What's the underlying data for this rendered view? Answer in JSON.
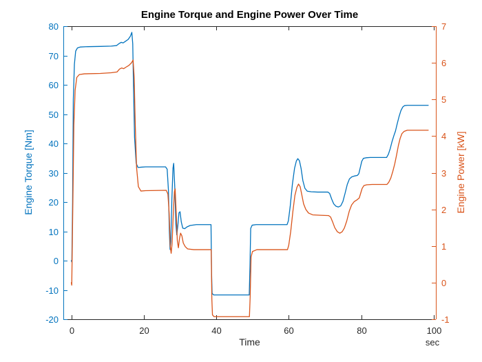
{
  "title": "Engine Torque and Engine Power Over Time",
  "colors": {
    "torque": "#0072BD",
    "power": "#D95319",
    "axis": "#262626",
    "title": "#000000",
    "background": "#ffffff"
  },
  "axes": {
    "x": {
      "label": "Time",
      "unit": "sec",
      "ticks": [
        0,
        20,
        40,
        60,
        80,
        100
      ],
      "range": [
        -2.2,
        100.6
      ]
    },
    "left": {
      "label": "Engine Torque [Nm]",
      "ticks": [
        -20,
        -10,
        0,
        10,
        20,
        30,
        40,
        50,
        60,
        70,
        80
      ],
      "range": [
        -20,
        80
      ]
    },
    "right": {
      "label": "Engine Power [kW]",
      "ticks": [
        -1,
        0,
        1,
        2,
        3,
        4,
        5,
        6,
        7
      ],
      "range": [
        -1,
        7
      ]
    }
  },
  "chart_data": {
    "type": "line",
    "title": "Engine Torque and Engine Power Over Time",
    "xlabel": "Time",
    "x_unit": "sec",
    "xlim": [
      -2.2,
      100.6
    ],
    "grid": false,
    "legend": "none",
    "series": [
      {
        "name": "Engine Torque",
        "axis": "left",
        "ylabel": "Engine Torque [Nm]",
        "ylim": [
          -20,
          80
        ],
        "color": "#0072BD",
        "points": [
          [
            0,
            0
          ],
          [
            0.15,
            -0.5
          ],
          [
            0.35,
            20
          ],
          [
            0.55,
            55
          ],
          [
            0.85,
            67
          ],
          [
            1.2,
            71.5
          ],
          [
            1.7,
            72.6
          ],
          [
            2.5,
            72.9
          ],
          [
            4,
            73
          ],
          [
            8,
            73.1
          ],
          [
            11,
            73.2
          ],
          [
            12.5,
            73.4
          ],
          [
            13.2,
            74.1
          ],
          [
            13.8,
            74.5
          ],
          [
            14.3,
            74.3
          ],
          [
            14.9,
            74.8
          ],
          [
            15.7,
            75.5
          ],
          [
            16.3,
            76.6
          ],
          [
            16.7,
            77.9
          ],
          [
            16.95,
            74
          ],
          [
            17.15,
            60
          ],
          [
            17.45,
            42
          ],
          [
            17.9,
            33.2
          ],
          [
            18.4,
            31.8
          ],
          [
            19.3,
            31.9
          ],
          [
            20.5,
            32
          ],
          [
            26.0,
            32
          ],
          [
            26.45,
            31.2
          ],
          [
            26.8,
            24
          ],
          [
            27.05,
            10
          ],
          [
            27.25,
            3.8
          ],
          [
            27.45,
            6.5
          ],
          [
            27.75,
            21
          ],
          [
            28.05,
            31.5
          ],
          [
            28.25,
            33.2
          ],
          [
            28.55,
            25
          ],
          [
            28.85,
            12.5
          ],
          [
            29.1,
            8.8
          ],
          [
            29.4,
            12
          ],
          [
            29.7,
            16.3
          ],
          [
            30.0,
            16.7
          ],
          [
            30.35,
            13.2
          ],
          [
            30.75,
            11.1
          ],
          [
            31.3,
            10.9
          ],
          [
            31.9,
            11.5
          ],
          [
            32.8,
            12.0
          ],
          [
            34.5,
            12.3
          ],
          [
            38.55,
            12.3
          ],
          [
            38.7,
            -4
          ],
          [
            38.85,
            -11.2
          ],
          [
            39.3,
            -11.7
          ],
          [
            49.1,
            -11.7
          ],
          [
            49.3,
            -2
          ],
          [
            49.5,
            11
          ],
          [
            49.9,
            12.1
          ],
          [
            51,
            12.3
          ],
          [
            59.55,
            12.3
          ],
          [
            59.9,
            13.6
          ],
          [
            60.4,
            18.5
          ],
          [
            61.0,
            26
          ],
          [
            61.6,
            31.5
          ],
          [
            62.1,
            34
          ],
          [
            62.5,
            34.8
          ],
          [
            62.95,
            34.1
          ],
          [
            63.4,
            31.5
          ],
          [
            63.9,
            27.3
          ],
          [
            64.45,
            24.7
          ],
          [
            65.1,
            23.7
          ],
          [
            66.2,
            23.5
          ],
          [
            68,
            23.4
          ],
          [
            70.8,
            23.4
          ],
          [
            71.3,
            22.9
          ],
          [
            71.85,
            21
          ],
          [
            72.4,
            19.4
          ],
          [
            73.0,
            18.6
          ],
          [
            73.7,
            18.3
          ],
          [
            74.35,
            18.7
          ],
          [
            74.95,
            20.2
          ],
          [
            75.55,
            23
          ],
          [
            76.15,
            26
          ],
          [
            76.75,
            27.9
          ],
          [
            77.4,
            28.6
          ],
          [
            78.2,
            28.9
          ],
          [
            78.95,
            29.1
          ],
          [
            79.35,
            29.7
          ],
          [
            79.75,
            31.8
          ],
          [
            80.15,
            33.9
          ],
          [
            80.6,
            34.9
          ],
          [
            81.3,
            35.1
          ],
          [
            82.5,
            35.2
          ],
          [
            87.0,
            35.2
          ],
          [
            87.5,
            36.3
          ],
          [
            88.0,
            38.2
          ],
          [
            88.5,
            40.6
          ],
          [
            89.0,
            42.6
          ],
          [
            89.45,
            44.2
          ],
          [
            89.95,
            46.8
          ],
          [
            90.45,
            49.2
          ],
          [
            90.95,
            51.2
          ],
          [
            91.45,
            52.4
          ],
          [
            91.95,
            52.9
          ],
          [
            92.7,
            53
          ],
          [
            98.5,
            53
          ]
        ]
      },
      {
        "name": "Engine Power",
        "axis": "right",
        "ylabel": "Engine Power [kW]",
        "ylim": [
          -1,
          7
        ],
        "color": "#D95319",
        "points": [
          [
            0,
            0.0
          ],
          [
            0.12,
            -0.07
          ],
          [
            0.4,
            2.0
          ],
          [
            0.7,
            4.3
          ],
          [
            1.05,
            5.25
          ],
          [
            1.5,
            5.6
          ],
          [
            2.2,
            5.68
          ],
          [
            3.6,
            5.7
          ],
          [
            8,
            5.71
          ],
          [
            11,
            5.73
          ],
          [
            12.6,
            5.75
          ],
          [
            13.3,
            5.83
          ],
          [
            13.9,
            5.86
          ],
          [
            14.45,
            5.84
          ],
          [
            15.05,
            5.88
          ],
          [
            15.9,
            5.93
          ],
          [
            16.6,
            6.0
          ],
          [
            17.05,
            6.08
          ],
          [
            17.35,
            5.6
          ],
          [
            17.65,
            4.3
          ],
          [
            18.0,
            3.15
          ],
          [
            18.5,
            2.62
          ],
          [
            19.2,
            2.5
          ],
          [
            20.5,
            2.51
          ],
          [
            26.2,
            2.52
          ],
          [
            26.65,
            2.42
          ],
          [
            27.0,
            1.9
          ],
          [
            27.3,
            1.0
          ],
          [
            27.55,
            0.8
          ],
          [
            27.8,
            1.05
          ],
          [
            28.15,
            1.9
          ],
          [
            28.45,
            2.48
          ],
          [
            28.65,
            2.56
          ],
          [
            28.95,
            1.9
          ],
          [
            29.25,
            1.15
          ],
          [
            29.55,
            0.95
          ],
          [
            29.85,
            1.2
          ],
          [
            30.15,
            1.35
          ],
          [
            30.5,
            1.28
          ],
          [
            30.9,
            1.08
          ],
          [
            31.45,
            0.98
          ],
          [
            32.1,
            0.92
          ],
          [
            33.8,
            0.9
          ],
          [
            38.6,
            0.9
          ],
          [
            38.78,
            -0.45
          ],
          [
            38.95,
            -0.88
          ],
          [
            39.4,
            -0.93
          ],
          [
            49.15,
            -0.93
          ],
          [
            49.35,
            -0.4
          ],
          [
            49.6,
            0.7
          ],
          [
            50.0,
            0.85
          ],
          [
            51.2,
            0.9
          ],
          [
            59.65,
            0.9
          ],
          [
            60.0,
            1.02
          ],
          [
            60.55,
            1.4
          ],
          [
            61.15,
            1.95
          ],
          [
            61.7,
            2.38
          ],
          [
            62.25,
            2.6
          ],
          [
            62.7,
            2.69
          ],
          [
            63.15,
            2.62
          ],
          [
            63.6,
            2.4
          ],
          [
            64.1,
            2.15
          ],
          [
            64.7,
            2.0
          ],
          [
            65.45,
            1.9
          ],
          [
            66.6,
            1.85
          ],
          [
            68.5,
            1.84
          ],
          [
            71.0,
            1.83
          ],
          [
            71.55,
            1.79
          ],
          [
            72.1,
            1.66
          ],
          [
            72.7,
            1.5
          ],
          [
            73.4,
            1.39
          ],
          [
            74.1,
            1.35
          ],
          [
            74.75,
            1.39
          ],
          [
            75.35,
            1.49
          ],
          [
            76.0,
            1.68
          ],
          [
            76.7,
            1.95
          ],
          [
            77.35,
            2.12
          ],
          [
            78.05,
            2.21
          ],
          [
            78.85,
            2.26
          ],
          [
            79.45,
            2.31
          ],
          [
            79.85,
            2.44
          ],
          [
            80.25,
            2.57
          ],
          [
            80.75,
            2.65
          ],
          [
            81.5,
            2.67
          ],
          [
            83,
            2.68
          ],
          [
            87.1,
            2.68
          ],
          [
            87.6,
            2.74
          ],
          [
            88.15,
            2.85
          ],
          [
            88.7,
            3.03
          ],
          [
            89.25,
            3.24
          ],
          [
            89.75,
            3.48
          ],
          [
            90.25,
            3.74
          ],
          [
            90.75,
            3.94
          ],
          [
            91.25,
            4.07
          ],
          [
            91.85,
            4.13
          ],
          [
            92.7,
            4.16
          ],
          [
            98.5,
            4.16
          ]
        ]
      }
    ]
  }
}
